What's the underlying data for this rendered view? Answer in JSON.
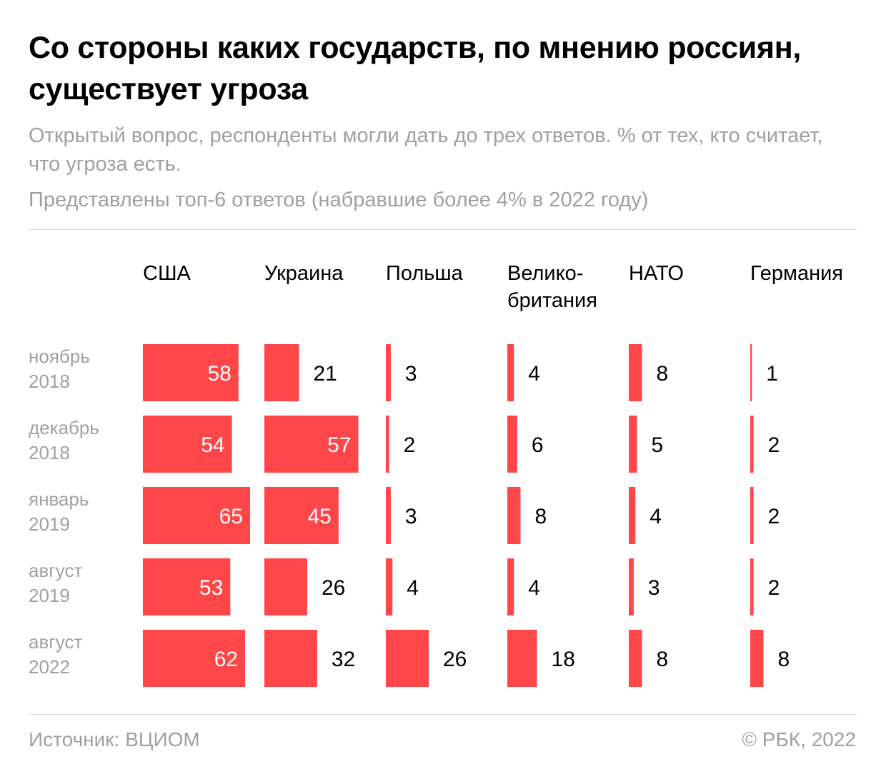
{
  "title": "Со стороны каких государств, по мнению россиян, существует угроза",
  "subtitle": "Открытый вопрос, респонденты могли дать до трех ответов. % от тех, кто считает, что угроза есть.",
  "subtitle2": "Представлены топ-6 ответов (набравшие более 4% в 2022 году)",
  "footer": {
    "source": "Источник: ВЦИОМ",
    "copyright": "© РБК, 2022"
  },
  "colors": {
    "bar": "#ff4649",
    "text": "#000000",
    "muted": "#a0a0a0",
    "rule": "#dcdcdc",
    "label_on_bar": "#ffffff"
  },
  "chart_data": {
    "type": "bar",
    "title": "Со стороны каких государств, по мнению россиян, существует угроза",
    "unit": "%",
    "categories": [
      [
        "ноябрь",
        "2018"
      ],
      [
        "декабрь",
        "2018"
      ],
      [
        "январь",
        "2019"
      ],
      [
        "август",
        "2019"
      ],
      [
        "август",
        "2022"
      ]
    ],
    "series": [
      {
        "name": [
          "США"
        ],
        "values": [
          58,
          54,
          65,
          53,
          62
        ]
      },
      {
        "name": [
          "Украина"
        ],
        "values": [
          21,
          57,
          45,
          26,
          32
        ]
      },
      {
        "name": [
          "Польша"
        ],
        "values": [
          3,
          2,
          3,
          4,
          26
        ]
      },
      {
        "name": [
          "Велико-",
          "британия"
        ],
        "values": [
          4,
          6,
          8,
          4,
          18
        ]
      },
      {
        "name": [
          "НАТО"
        ],
        "values": [
          8,
          5,
          4,
          3,
          8
        ]
      },
      {
        "name": [
          "Германия"
        ],
        "values": [
          1,
          2,
          2,
          2,
          8
        ]
      }
    ]
  }
}
